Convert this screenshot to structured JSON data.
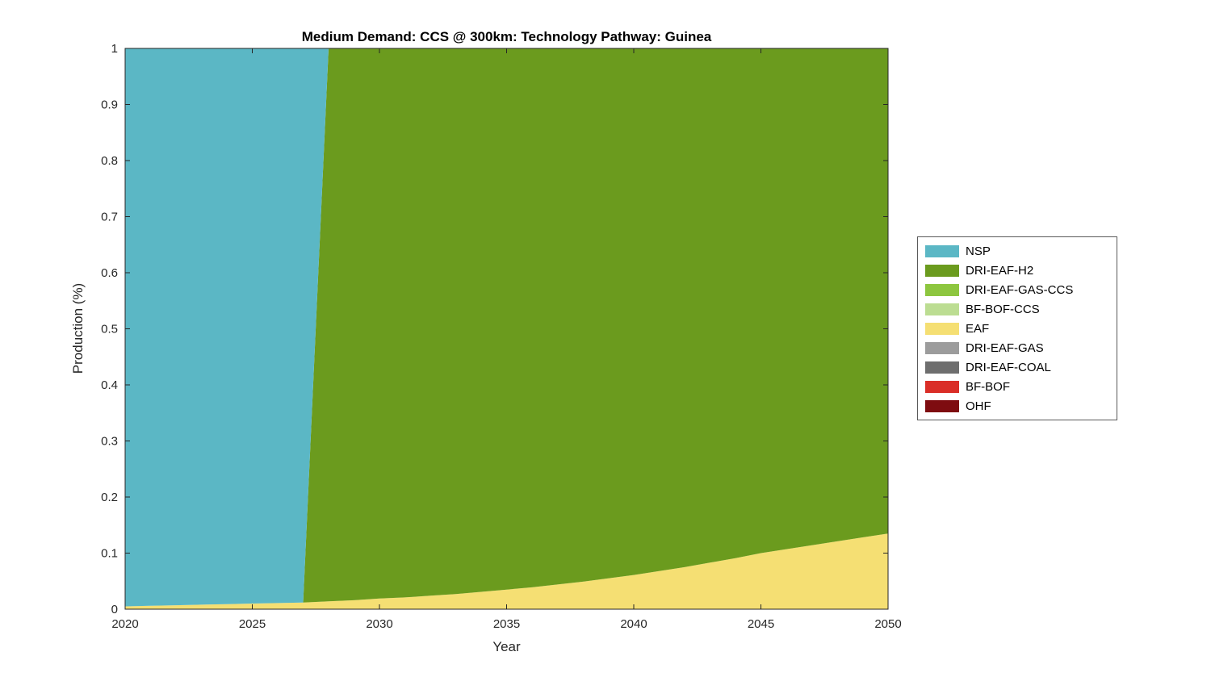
{
  "chart_data": {
    "type": "area",
    "stacked": true,
    "title": "Medium Demand: CCS @ 300km: Technology Pathway: Guinea",
    "xlabel": "Year",
    "ylabel": "Production (%)",
    "xlim": [
      2020,
      2050
    ],
    "ylim": [
      0,
      1
    ],
    "xticks": [
      "2020",
      "2025",
      "2030",
      "2035",
      "2040",
      "2045",
      "2050"
    ],
    "yticks": [
      "0",
      "0.1",
      "0.2",
      "0.3",
      "0.4",
      "0.5",
      "0.6",
      "0.7",
      "0.8",
      "0.9",
      "1"
    ],
    "grid": false,
    "legend_position": "right-outside",
    "legend_order": [
      "NSP",
      "DRI-EAF-H2",
      "DRI-EAF-GAS-CCS",
      "BF-BOF-CCS",
      "EAF",
      "DRI-EAF-GAS",
      "DRI-EAF-COAL",
      "BF-BOF",
      "OHF"
    ],
    "x": [
      2020,
      2021,
      2022,
      2023,
      2024,
      2025,
      2026,
      2027,
      2028,
      2029,
      2030,
      2031,
      2032,
      2033,
      2034,
      2035,
      2036,
      2037,
      2038,
      2039,
      2040,
      2041,
      2042,
      2043,
      2044,
      2045,
      2046,
      2047,
      2048,
      2049,
      2050
    ],
    "series": [
      {
        "name": "OHF",
        "color": "#7E0C10",
        "values": [
          0,
          0,
          0,
          0,
          0,
          0,
          0,
          0,
          0,
          0,
          0,
          0,
          0,
          0,
          0,
          0,
          0,
          0,
          0,
          0,
          0,
          0,
          0,
          0,
          0,
          0,
          0,
          0,
          0,
          0,
          0
        ]
      },
      {
        "name": "BF-BOF",
        "color": "#DA2E27",
        "values": [
          0,
          0,
          0,
          0,
          0,
          0,
          0,
          0,
          0,
          0,
          0,
          0,
          0,
          0,
          0,
          0,
          0,
          0,
          0,
          0,
          0,
          0,
          0,
          0,
          0,
          0,
          0,
          0,
          0,
          0,
          0
        ]
      },
      {
        "name": "DRI-EAF-COAL",
        "color": "#6E6E6E",
        "values": [
          0,
          0,
          0,
          0,
          0,
          0,
          0,
          0,
          0,
          0,
          0,
          0,
          0,
          0,
          0,
          0,
          0,
          0,
          0,
          0,
          0,
          0,
          0,
          0,
          0,
          0,
          0,
          0,
          0,
          0,
          0
        ]
      },
      {
        "name": "DRI-EAF-GAS",
        "color": "#9C9C9C",
        "values": [
          0,
          0,
          0,
          0,
          0,
          0,
          0,
          0,
          0,
          0,
          0,
          0,
          0,
          0,
          0,
          0,
          0,
          0,
          0,
          0,
          0,
          0,
          0,
          0,
          0,
          0,
          0,
          0,
          0,
          0,
          0
        ]
      },
      {
        "name": "EAF",
        "color": "#F5DF73",
        "values": [
          0.005,
          0.006,
          0.007,
          0.008,
          0.009,
          0.01,
          0.011,
          0.012,
          0.014,
          0.016,
          0.019,
          0.021,
          0.024,
          0.027,
          0.031,
          0.035,
          0.039,
          0.044,
          0.049,
          0.055,
          0.061,
          0.068,
          0.075,
          0.083,
          0.091,
          0.1,
          0.107,
          0.114,
          0.121,
          0.128,
          0.135
        ]
      },
      {
        "name": "BF-BOF-CCS",
        "color": "#BCDD92",
        "values": [
          0,
          0,
          0,
          0,
          0,
          0,
          0,
          0,
          0,
          0,
          0,
          0,
          0,
          0,
          0,
          0,
          0,
          0,
          0,
          0,
          0,
          0,
          0,
          0,
          0,
          0,
          0,
          0,
          0,
          0,
          0
        ]
      },
      {
        "name": "DRI-EAF-GAS-CCS",
        "color": "#8DC63F",
        "values": [
          0,
          0,
          0,
          0,
          0,
          0,
          0,
          0,
          0,
          0,
          0,
          0,
          0,
          0,
          0,
          0,
          0,
          0,
          0,
          0,
          0,
          0,
          0,
          0,
          0,
          0,
          0,
          0,
          0,
          0,
          0
        ]
      },
      {
        "name": "DRI-EAF-H2",
        "color": "#6B9B1E",
        "values": [
          0,
          0,
          0,
          0,
          0,
          0,
          0,
          0,
          0.986,
          0.984,
          0.981,
          0.979,
          0.976,
          0.973,
          0.969,
          0.965,
          0.961,
          0.956,
          0.951,
          0.945,
          0.939,
          0.932,
          0.925,
          0.917,
          0.909,
          0.9,
          0.893,
          0.886,
          0.879,
          0.872,
          0.865
        ]
      },
      {
        "name": "NSP",
        "color": "#5BB7C5",
        "values": [
          0.995,
          0.994,
          0.993,
          0.992,
          0.991,
          0.99,
          0.989,
          0.988,
          0,
          0,
          0,
          0,
          0,
          0,
          0,
          0,
          0,
          0,
          0,
          0,
          0,
          0,
          0,
          0,
          0,
          0,
          0,
          0,
          0,
          0,
          0
        ]
      }
    ]
  }
}
